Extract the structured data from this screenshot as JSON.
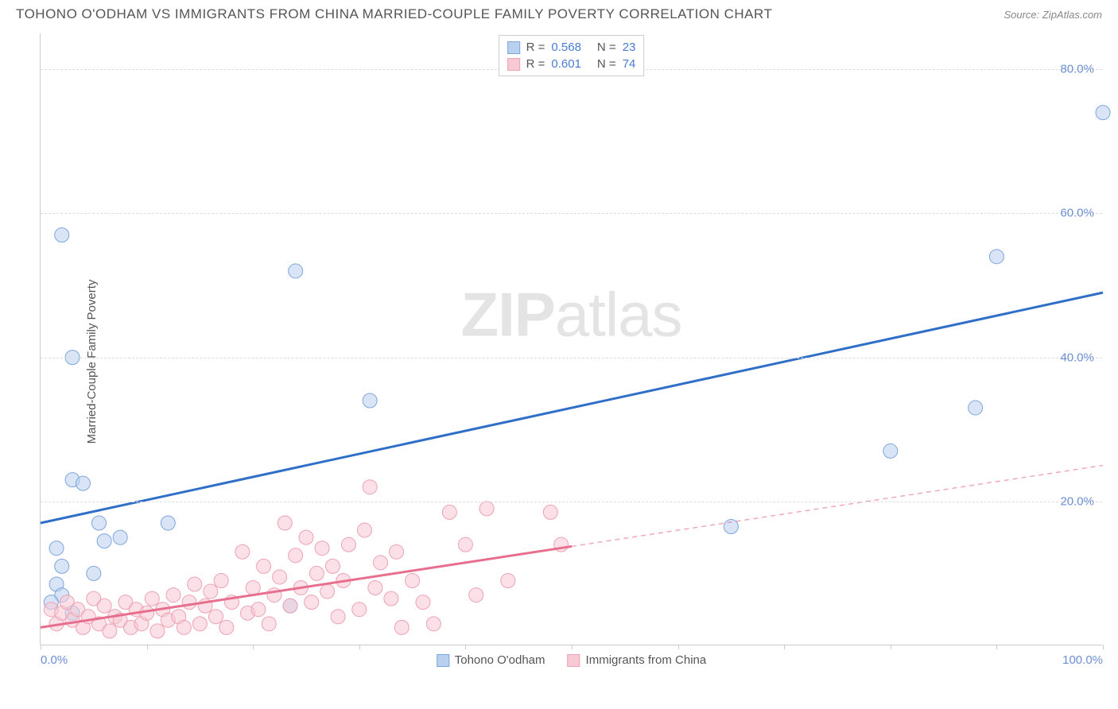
{
  "title": "TOHONO O'ODHAM VS IMMIGRANTS FROM CHINA MARRIED-COUPLE FAMILY POVERTY CORRELATION CHART",
  "source": "Source: ZipAtlas.com",
  "watermark_bold": "ZIP",
  "watermark_light": "atlas",
  "y_axis_label": "Married-Couple Family Poverty",
  "chart": {
    "type": "scatter",
    "xlim": [
      0,
      100
    ],
    "ylim": [
      0,
      85
    ],
    "x_ticks": [
      0,
      10,
      20,
      30,
      40,
      50,
      60,
      70,
      80,
      90,
      100
    ],
    "x_tick_labels": {
      "0": "0.0%",
      "100": "100.0%"
    },
    "y_ticks": [
      20,
      40,
      60,
      80
    ],
    "y_tick_labels": {
      "20": "20.0%",
      "40": "40.0%",
      "60": "60.0%",
      "80": "80.0%"
    },
    "grid_color": "#dddddd",
    "axis_color": "#cccccc",
    "background_color": "#ffffff",
    "tick_label_color": "#6b8fd4",
    "marker_radius": 9,
    "marker_opacity": 0.55,
    "line_width": 3,
    "series": [
      {
        "name": "Tohono O'odham",
        "color_fill": "#b9d0ef",
        "color_stroke": "#7da6dd",
        "line_color": "#2f6fc7",
        "r": "0.568",
        "n": "23",
        "trend": {
          "x1": 0,
          "y1": 17,
          "x2": 100,
          "y2": 49,
          "dash_from_x": null
        },
        "points": [
          [
            2,
            57
          ],
          [
            3,
            40
          ],
          [
            3,
            23
          ],
          [
            4,
            22.5
          ],
          [
            1.5,
            13.5
          ],
          [
            2,
            11
          ],
          [
            5.5,
            17
          ],
          [
            6,
            14.5
          ],
          [
            7.5,
            15
          ],
          [
            5,
            10
          ],
          [
            1.5,
            8.5
          ],
          [
            2,
            7
          ],
          [
            1,
            6
          ],
          [
            3,
            4.5
          ],
          [
            12,
            17
          ],
          [
            23.5,
            5.5
          ],
          [
            24,
            52
          ],
          [
            31,
            34
          ],
          [
            65,
            16.5
          ],
          [
            80,
            27
          ],
          [
            88,
            33
          ],
          [
            90,
            54
          ],
          [
            100,
            74
          ]
        ]
      },
      {
        "name": "Immigrants from China",
        "color_fill": "#f7c9d4",
        "color_stroke": "#eea1b4",
        "line_color": "#e86e8e",
        "r": "0.601",
        "n": "74",
        "trend": {
          "x1": 0,
          "y1": 2.5,
          "x2": 100,
          "y2": 25,
          "dash_from_x": 50
        },
        "points": [
          [
            1,
            5
          ],
          [
            1.5,
            3
          ],
          [
            2,
            4.5
          ],
          [
            2.5,
            6
          ],
          [
            3,
            3.5
          ],
          [
            3.5,
            5
          ],
          [
            4,
            2.5
          ],
          [
            4.5,
            4
          ],
          [
            5,
            6.5
          ],
          [
            5.5,
            3
          ],
          [
            6,
            5.5
          ],
          [
            6.5,
            2
          ],
          [
            7,
            4
          ],
          [
            7.5,
            3.5
          ],
          [
            8,
            6
          ],
          [
            8.5,
            2.5
          ],
          [
            9,
            5
          ],
          [
            9.5,
            3
          ],
          [
            10,
            4.5
          ],
          [
            10.5,
            6.5
          ],
          [
            11,
            2
          ],
          [
            11.5,
            5
          ],
          [
            12,
            3.5
          ],
          [
            12.5,
            7
          ],
          [
            13,
            4
          ],
          [
            13.5,
            2.5
          ],
          [
            14,
            6
          ],
          [
            14.5,
            8.5
          ],
          [
            15,
            3
          ],
          [
            15.5,
            5.5
          ],
          [
            16,
            7.5
          ],
          [
            16.5,
            4
          ],
          [
            17,
            9
          ],
          [
            17.5,
            2.5
          ],
          [
            18,
            6
          ],
          [
            19,
            13
          ],
          [
            19.5,
            4.5
          ],
          [
            20,
            8
          ],
          [
            20.5,
            5
          ],
          [
            21,
            11
          ],
          [
            21.5,
            3
          ],
          [
            22,
            7
          ],
          [
            22.5,
            9.5
          ],
          [
            23,
            17
          ],
          [
            23.5,
            5.5
          ],
          [
            24,
            12.5
          ],
          [
            24.5,
            8
          ],
          [
            25,
            15
          ],
          [
            25.5,
            6
          ],
          [
            26,
            10
          ],
          [
            26.5,
            13.5
          ],
          [
            27,
            7.5
          ],
          [
            27.5,
            11
          ],
          [
            28,
            4
          ],
          [
            28.5,
            9
          ],
          [
            29,
            14
          ],
          [
            30,
            5
          ],
          [
            30.5,
            16
          ],
          [
            31,
            22
          ],
          [
            31.5,
            8
          ],
          [
            32,
            11.5
          ],
          [
            33,
            6.5
          ],
          [
            33.5,
            13
          ],
          [
            34,
            2.5
          ],
          [
            35,
            9
          ],
          [
            36,
            6
          ],
          [
            37,
            3
          ],
          [
            38.5,
            18.5
          ],
          [
            40,
            14
          ],
          [
            41,
            7
          ],
          [
            42,
            19
          ],
          [
            44,
            9
          ],
          [
            48,
            18.5
          ],
          [
            49,
            14
          ]
        ]
      }
    ]
  },
  "legend_bottom": [
    {
      "label": "Tohono O'odham",
      "fill": "#b9d0ef",
      "stroke": "#7da6dd"
    },
    {
      "label": "Immigrants from China",
      "fill": "#f7c9d4",
      "stroke": "#eea1b4"
    }
  ]
}
